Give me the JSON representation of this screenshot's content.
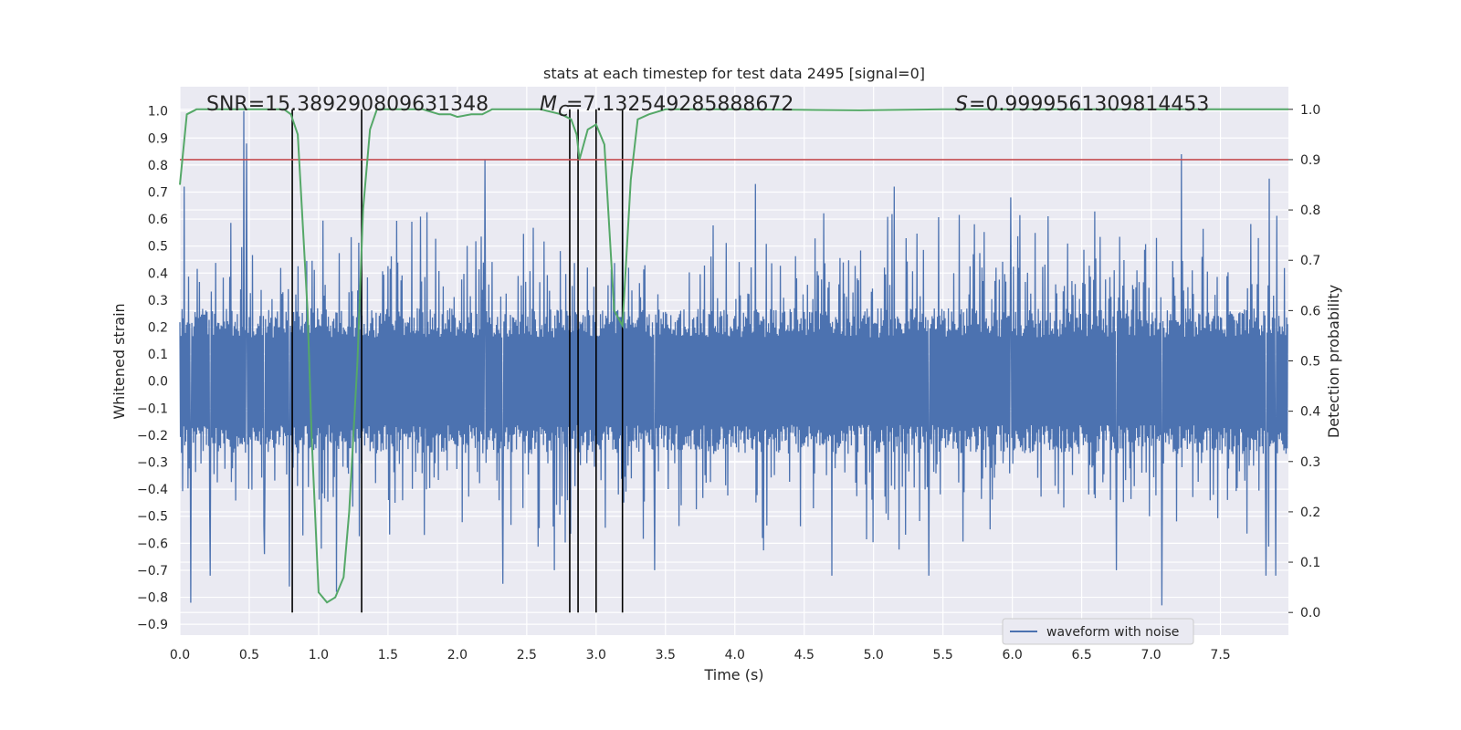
{
  "chart_data": {
    "type": "line",
    "title": "stats at each timestep for test data 2495 [signal=0]",
    "xlabel": "Time (s)",
    "ylabel_left": "Whitened strain",
    "ylabel_right": "Detection probability",
    "xlim": [
      0,
      7.99
    ],
    "ylim_left": [
      -0.94,
      1.09
    ],
    "ylim_right": [
      -0.045,
      1.045
    ],
    "x_ticks": [
      "0.0",
      "0.5",
      "1.0",
      "1.5",
      "2.0",
      "2.5",
      "3.0",
      "3.5",
      "4.0",
      "4.5",
      "5.0",
      "5.5",
      "6.0",
      "6.5",
      "7.0",
      "7.5"
    ],
    "y_left_ticks": [
      "1.0",
      "0.9",
      "0.8",
      "0.7",
      "0.6",
      "0.5",
      "0.4",
      "0.3",
      "0.2",
      "0.1",
      "0.0",
      "-0.1",
      "-0.2",
      "-0.3",
      "-0.4",
      "-0.5",
      "-0.6",
      "-0.7",
      "-0.8",
      "-0.9"
    ],
    "y_right_ticks": [
      "1.0",
      "0.9",
      "0.8",
      "0.7",
      "0.6",
      "0.5",
      "0.4",
      "0.3",
      "0.2",
      "0.1",
      "0.0"
    ],
    "annotations": {
      "snr": "SNR=15.389290809631348",
      "mc": "=7.132549285888672",
      "s": "=0.9999561309814453"
    },
    "threshold": {
      "axis": "right",
      "value": 0.9,
      "color": "#c44e52"
    },
    "vlines": [
      0.81,
      1.31,
      2.81,
      2.87,
      3.0,
      3.19
    ],
    "vline_range_right": [
      0.0,
      1.0
    ],
    "detection_probability": {
      "name": "detection probability",
      "color": "#55a868",
      "x": [
        0.0,
        0.05,
        0.12,
        0.25,
        0.5,
        0.75,
        0.8,
        0.85,
        0.88,
        0.92,
        0.95,
        1.0,
        1.06,
        1.12,
        1.18,
        1.22,
        1.28,
        1.32,
        1.37,
        1.42,
        1.5,
        1.75,
        1.87,
        1.95,
        2.0,
        2.1,
        2.18,
        2.25,
        2.5,
        2.6,
        2.75,
        2.82,
        2.86,
        2.88,
        2.94,
        3.0,
        3.06,
        3.13,
        3.19,
        3.25,
        3.3,
        3.38,
        3.5,
        4.0,
        4.5,
        4.9,
        5.5,
        6.0,
        6.5,
        7.0,
        7.5,
        7.99
      ],
      "y": [
        0.85,
        0.99,
        1.0,
        1.0,
        1.0,
        1.0,
        0.99,
        0.95,
        0.8,
        0.6,
        0.35,
        0.04,
        0.02,
        0.03,
        0.07,
        0.2,
        0.5,
        0.8,
        0.96,
        1.0,
        1.0,
        1.0,
        0.99,
        0.99,
        0.985,
        0.99,
        0.99,
        1.0,
        1.0,
        1.0,
        0.99,
        0.98,
        0.95,
        0.9,
        0.96,
        0.97,
        0.93,
        0.6,
        0.57,
        0.86,
        0.98,
        0.99,
        1.0,
        1.0,
        0.999,
        0.998,
        1.0,
        1.0,
        1.0,
        1.0,
        1.0,
        1.0
      ]
    },
    "waveform": {
      "name": "waveform with noise",
      "color": "#4c72b0",
      "sample_rate": 256,
      "core_envelope": 0.27,
      "spikes": [
        {
          "x": 0.03,
          "y": 0.72
        },
        {
          "x": 0.08,
          "y": -0.82
        },
        {
          "x": 0.22,
          "y": -0.72
        },
        {
          "x": 0.46,
          "y": 1.0
        },
        {
          "x": 0.48,
          "y": 0.88
        },
        {
          "x": 0.61,
          "y": -0.64
        },
        {
          "x": 0.79,
          "y": -0.76
        },
        {
          "x": 1.02,
          "y": -0.62
        },
        {
          "x": 1.13,
          "y": -0.78
        },
        {
          "x": 2.2,
          "y": 0.82
        },
        {
          "x": 2.33,
          "y": -0.75
        },
        {
          "x": 2.7,
          "y": -0.7
        },
        {
          "x": 3.19,
          "y": 0.62
        },
        {
          "x": 3.42,
          "y": -0.7
        },
        {
          "x": 4.15,
          "y": 0.73
        },
        {
          "x": 4.7,
          "y": -0.72
        },
        {
          "x": 5.15,
          "y": 0.72
        },
        {
          "x": 5.4,
          "y": -0.72
        },
        {
          "x": 5.99,
          "y": 0.68
        },
        {
          "x": 6.75,
          "y": -0.7
        },
        {
          "x": 7.08,
          "y": -0.83
        },
        {
          "x": 7.22,
          "y": 0.84
        },
        {
          "x": 7.85,
          "y": 0.75
        },
        {
          "x": 7.83,
          "y": -0.72
        },
        {
          "x": 7.9,
          "y": -0.72
        }
      ]
    },
    "grid": true,
    "legend": {
      "position": "lower-right",
      "entries": [
        "waveform with noise"
      ]
    }
  }
}
